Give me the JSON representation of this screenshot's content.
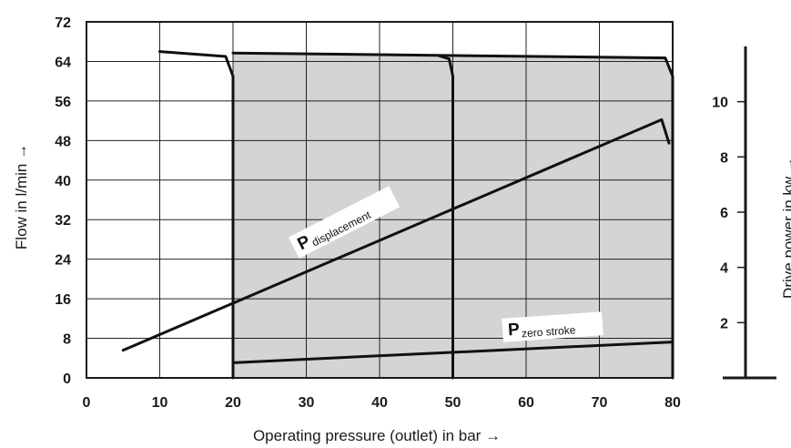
{
  "chart_data": {
    "type": "line",
    "xlabel": "Operating pressure (outlet) in bar →",
    "ylabel": "Flow in l/min →",
    "y2label": "Drive power in kw →",
    "xlim": [
      0,
      80
    ],
    "ylim": [
      0,
      72
    ],
    "y2lim": [
      0,
      12
    ],
    "x_ticks": [
      "0",
      "10",
      "20",
      "30",
      "40",
      "50",
      "60",
      "70",
      "80"
    ],
    "y_ticks": [
      "0",
      "8",
      "16",
      "24",
      "32",
      "40",
      "48",
      "56",
      "64",
      "72"
    ],
    "y2_ticks": [
      "2",
      "4",
      "6",
      "8",
      "10"
    ],
    "grid": true,
    "shaded_region": {
      "x_from": 20,
      "x_to": 80,
      "color": "#d4d4d4"
    },
    "series": [
      {
        "axis": "left",
        "x": [
          10,
          19,
          20,
          20
        ],
        "y": [
          66,
          65,
          61,
          0
        ]
      },
      {
        "axis": "left",
        "x": [
          20,
          79,
          80,
          80
        ],
        "y": [
          65.7,
          64.7,
          61,
          0
        ]
      },
      {
        "axis": "left",
        "x": [
          48,
          49.5,
          50,
          50
        ],
        "y": [
          65.2,
          64.5,
          61,
          0
        ]
      },
      {
        "axis": "right",
        "name": "P displacement",
        "x": [
          5,
          78.5,
          79.5
        ],
        "y": [
          1,
          9.35,
          8.5
        ]
      },
      {
        "axis": "right",
        "name": "P zero stroke",
        "x": [
          20,
          80
        ],
        "y": [
          0.55,
          1.3
        ]
      }
    ],
    "annotations": [
      {
        "main": "P",
        "sub": "displacement"
      },
      {
        "main": "P",
        "sub": "zero stroke"
      }
    ]
  }
}
